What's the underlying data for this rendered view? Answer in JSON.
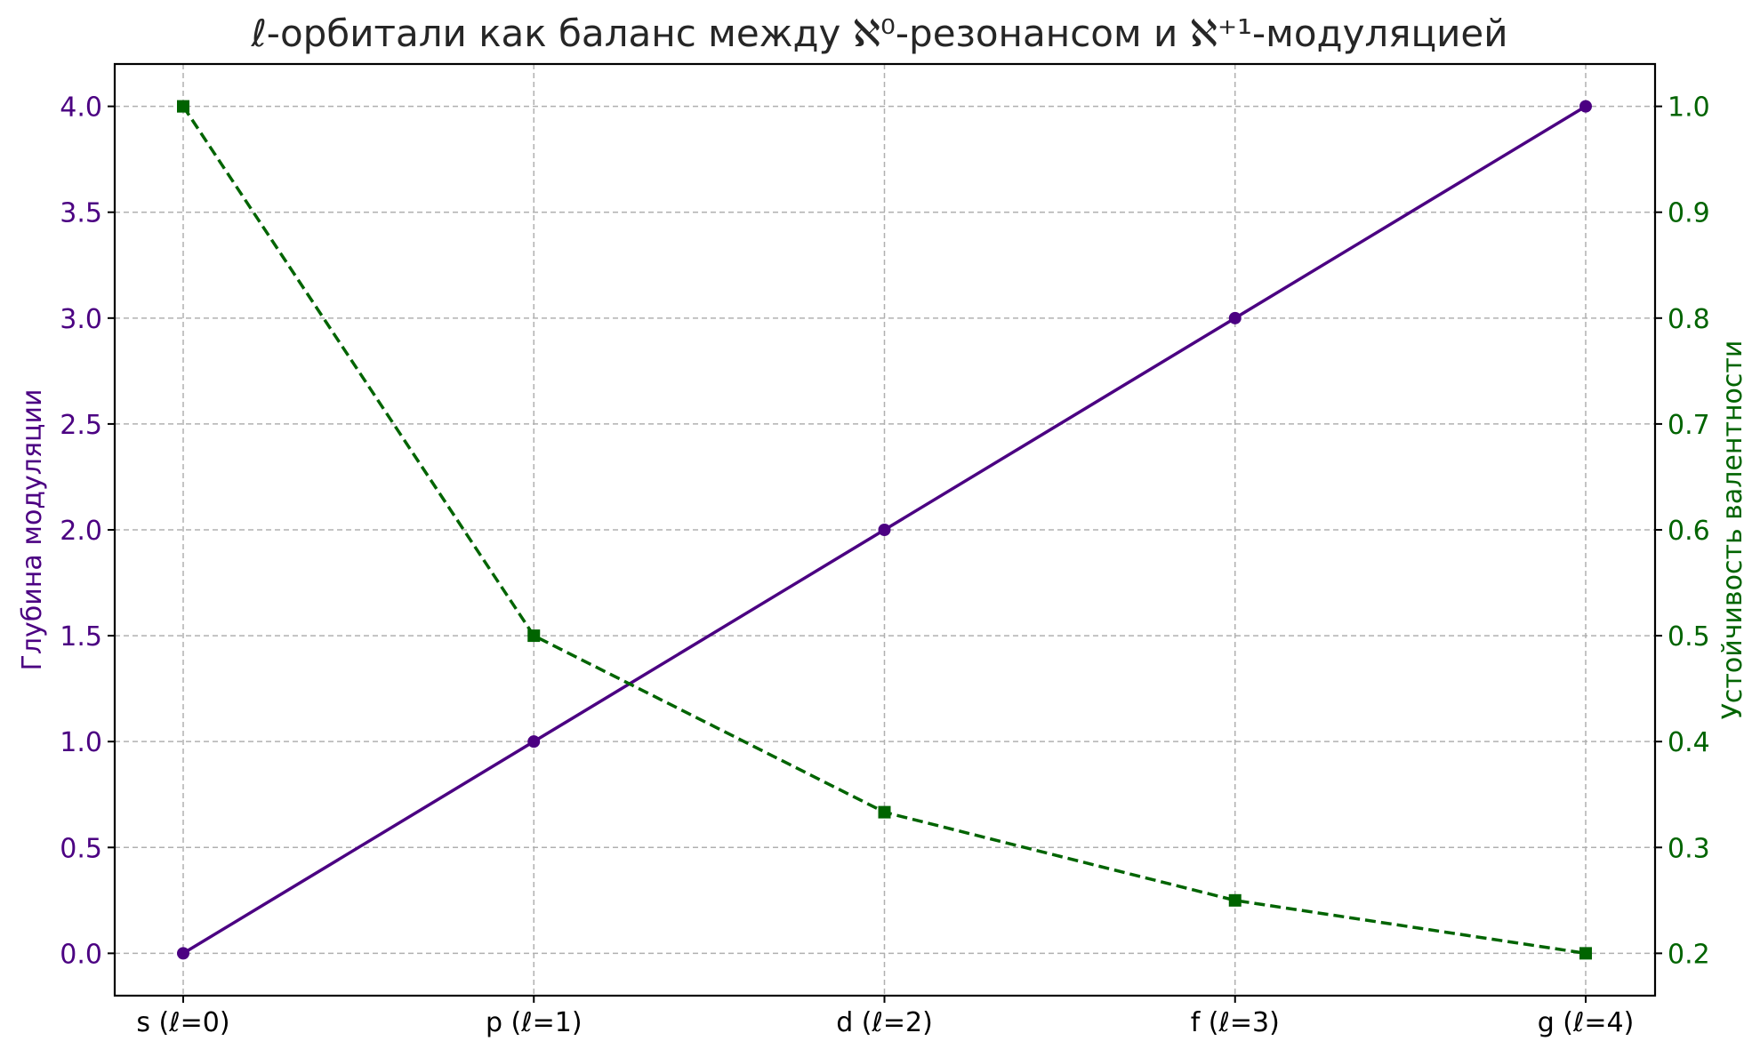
{
  "chart_data": {
    "type": "line",
    "title": "ℓ-орбитали как баланс между ℵ⁰-резонансом и ℵ⁺¹-модуляцией",
    "categories": [
      "s (ℓ=0)",
      "p (ℓ=1)",
      "d (ℓ=2)",
      "f (ℓ=3)",
      "g (ℓ=4)"
    ],
    "series": [
      {
        "axis": "left",
        "values": [
          0,
          1,
          2,
          3,
          4
        ],
        "color": "#4b0082",
        "line_style": "solid",
        "marker": "circle"
      },
      {
        "axis": "right",
        "values": [
          1.0,
          0.5,
          0.3333,
          0.25,
          0.2
        ],
        "color": "#006400",
        "line_style": "dashed",
        "marker": "square"
      }
    ],
    "ylabel_left": "Глубина модуляции",
    "ylabel_right": "Устойчивость валентности",
    "ylim_left": [
      -0.2,
      4.2
    ],
    "ylim_right": [
      0.16,
      1.04
    ],
    "yticks_left": [
      "0.0",
      "0.5",
      "1.0",
      "1.5",
      "2.0",
      "2.5",
      "3.0",
      "3.5",
      "4.0"
    ],
    "yticks_right": [
      "0.2",
      "0.3",
      "0.4",
      "0.5",
      "0.6",
      "0.7",
      "0.8",
      "0.9",
      "1.0"
    ],
    "grid": true,
    "left_axis_color": "#4b0082",
    "right_axis_color": "#006400"
  }
}
